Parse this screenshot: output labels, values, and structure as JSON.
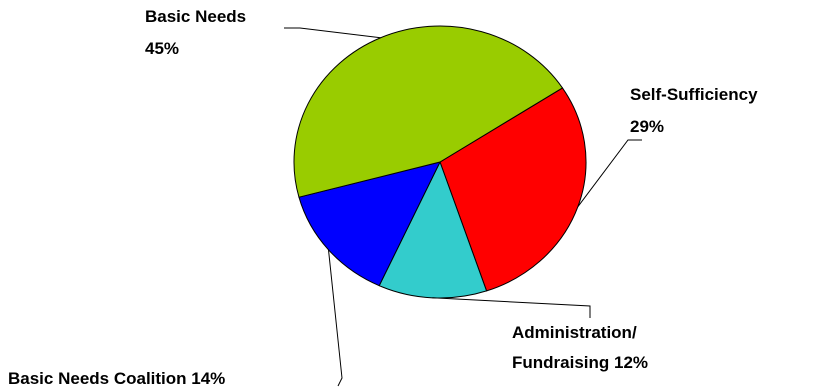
{
  "chart_data": {
    "type": "pie",
    "title": "",
    "slices": [
      {
        "label_lines": [
          "Self-Sufficiency",
          "29%"
        ],
        "value": 29,
        "color": "#ff0000"
      },
      {
        "label_lines": [
          "Administration/",
          "Fundraising 12%"
        ],
        "value": 12,
        "color": "#33cccc"
      },
      {
        "label_lines": [
          "Basic Needs Coalition 14%"
        ],
        "value": 14,
        "color": "#0000ff"
      },
      {
        "label_lines": [
          "Basic Needs",
          "45%"
        ],
        "value": 45,
        "color": "#99cc00"
      }
    ],
    "legend": "none"
  }
}
